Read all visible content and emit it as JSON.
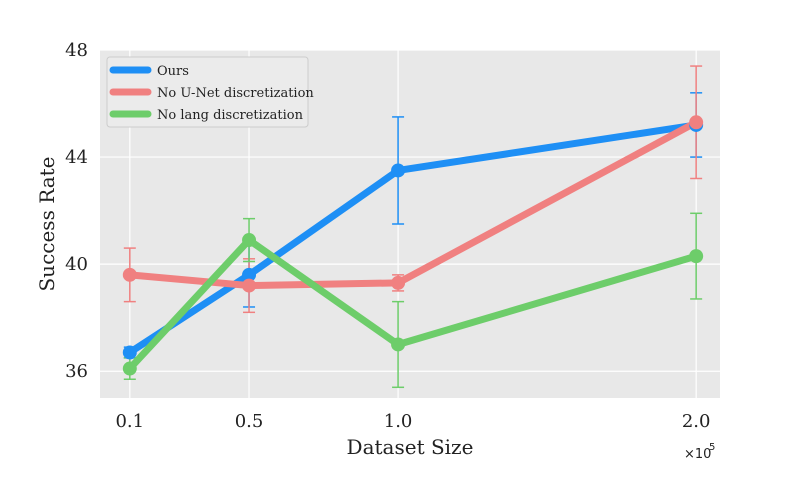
{
  "chart_data": {
    "type": "line",
    "title": "",
    "xlabel": "Dataset Size",
    "ylabel": "Success Rate",
    "x_scale_note": "×10",
    "x_scale_exp": "5",
    "x": [
      0.1,
      0.5,
      1.0,
      2.0
    ],
    "x_ticks": [
      "0.1",
      "0.5",
      "1.0",
      "2.0"
    ],
    "y_ticks": [
      "36",
      "40",
      "44",
      "48"
    ],
    "y_tick_values": [
      36,
      40,
      44,
      48
    ],
    "xlim": [
      0.0,
      2.08
    ],
    "ylim": [
      35.0,
      48.0
    ],
    "grid": true,
    "legend_position": "top-left",
    "series": [
      {
        "name": "Ours",
        "color": "#1e8ff5",
        "values": [
          36.7,
          39.6,
          43.5,
          45.2
        ],
        "err": [
          0.2,
          1.2,
          2.0,
          1.2
        ]
      },
      {
        "name": "No U-Net discretization",
        "color": "#f08080",
        "values": [
          39.6,
          39.2,
          39.3,
          45.3
        ],
        "err": [
          1.0,
          1.0,
          0.3,
          2.1
        ]
      },
      {
        "name": "No lang discretization",
        "color": "#6dcd6a",
        "values": [
          36.1,
          40.9,
          37.0,
          40.3
        ],
        "err": [
          0.4,
          0.8,
          1.6,
          1.6
        ]
      }
    ]
  }
}
